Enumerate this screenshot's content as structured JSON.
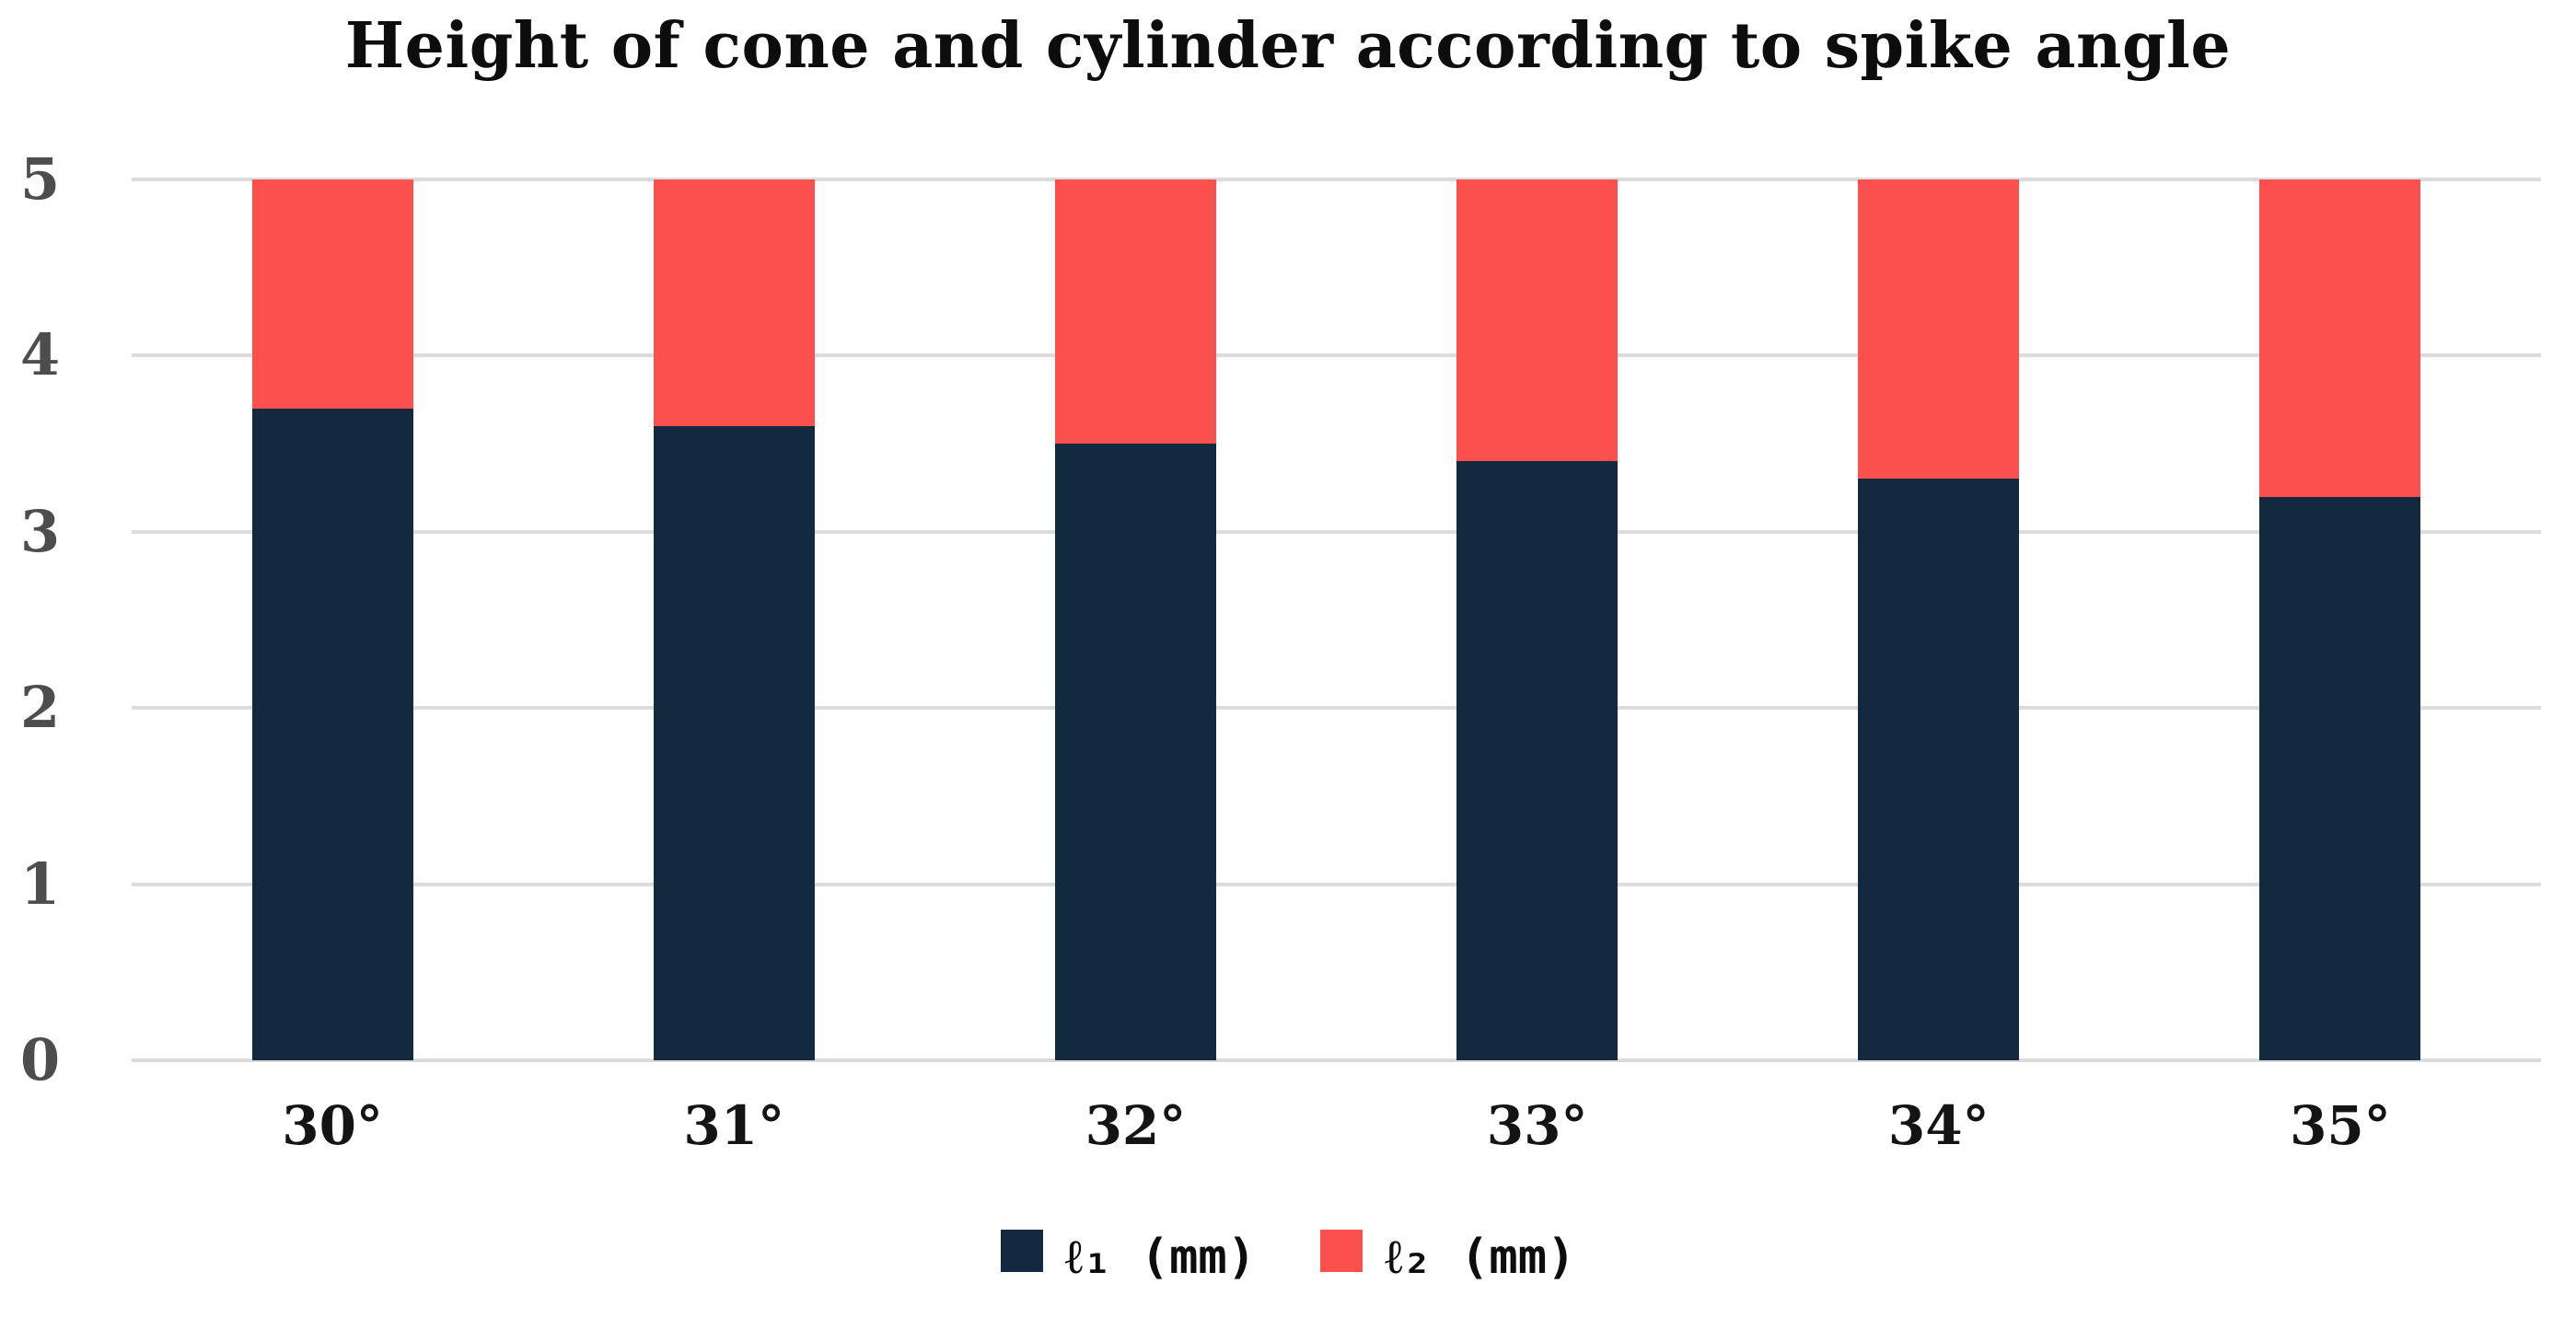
{
  "title": "Height of cone and cylinder according to spike angle",
  "colors": {
    "series1": "#122940",
    "series2": "#fc504e",
    "gridline": "#dcdcdc",
    "y_tick_label": "#4d4d4d",
    "x_tick_label": "#141414",
    "title_text": "#0d0d0d",
    "background": "#ffffff"
  },
  "chart_data": {
    "type": "bar",
    "stacked": true,
    "title": "Height of cone and cylinder according to spike angle",
    "categories": [
      "30°",
      "31°",
      "32°",
      "33°",
      "34°",
      "35°"
    ],
    "series": [
      {
        "name": "ℓ₁ (mm)",
        "color": "#122940",
        "values": [
          3.7,
          3.6,
          3.5,
          3.4,
          3.3,
          3.2
        ]
      },
      {
        "name": "ℓ₂ (mm)",
        "color": "#fc504e",
        "values": [
          1.3,
          1.4,
          1.5,
          1.6,
          1.7,
          1.8
        ]
      }
    ],
    "stack_totals": [
      5,
      5,
      5,
      5,
      5,
      5
    ],
    "xlabel": "",
    "ylabel": "",
    "ylim": [
      0,
      5
    ],
    "yticks": [
      0,
      1,
      2,
      3,
      4,
      5
    ],
    "grid": true,
    "legend_position": "bottom"
  }
}
